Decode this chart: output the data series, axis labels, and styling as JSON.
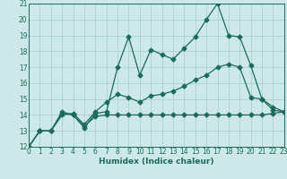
{
  "xlabel": "Humidex (Indice chaleur)",
  "bg_color": "#cce8e8",
  "line_color": "#1a6b5a",
  "grid_color": "#afd4d4",
  "axis_color": "#336655",
  "ylim": [
    12,
    21
  ],
  "xlim": [
    0,
    23
  ],
  "yticks": [
    12,
    13,
    14,
    15,
    16,
    17,
    18,
    19,
    20,
    21
  ],
  "xticks": [
    0,
    1,
    2,
    3,
    4,
    5,
    6,
    7,
    8,
    9,
    10,
    11,
    12,
    13,
    14,
    15,
    16,
    17,
    18,
    19,
    20,
    21,
    22,
    23
  ],
  "line1_x": [
    0,
    1,
    2,
    3,
    4,
    5,
    6,
    7,
    8,
    9,
    10,
    11,
    12,
    13,
    14,
    15,
    16,
    17,
    18,
    19,
    20,
    21,
    22,
    23
  ],
  "line1_y": [
    12,
    13,
    13,
    14.2,
    14.0,
    13.2,
    14.1,
    14.2,
    17.0,
    18.9,
    16.5,
    18.1,
    17.8,
    17.5,
    18.2,
    18.9,
    20.0,
    21.0,
    19.0,
    18.9,
    17.1,
    15.0,
    14.5,
    14.2
  ],
  "line2_x": [
    0,
    1,
    2,
    3,
    4,
    5,
    6,
    7,
    8,
    9,
    10,
    11,
    12,
    13,
    14,
    15,
    16,
    17,
    18,
    19,
    20,
    21,
    22,
    23
  ],
  "line2_y": [
    12,
    13,
    13,
    14.0,
    14.1,
    13.4,
    14.2,
    14.8,
    15.3,
    15.1,
    14.8,
    15.2,
    15.3,
    15.5,
    15.8,
    16.2,
    16.5,
    17.0,
    17.2,
    17.0,
    15.1,
    15.0,
    14.3,
    14.2
  ],
  "line3_x": [
    0,
    1,
    2,
    3,
    4,
    5,
    6,
    7,
    8,
    9,
    10,
    11,
    12,
    13,
    14,
    15,
    16,
    17,
    18,
    19,
    20,
    21,
    22,
    23
  ],
  "line3_y": [
    12,
    13,
    13,
    14.1,
    14.0,
    13.3,
    13.9,
    14.0,
    14.0,
    14.0,
    14.0,
    14.0,
    14.0,
    14.0,
    14.0,
    14.0,
    14.0,
    14.0,
    14.0,
    14.0,
    14.0,
    14.0,
    14.1,
    14.2
  ]
}
